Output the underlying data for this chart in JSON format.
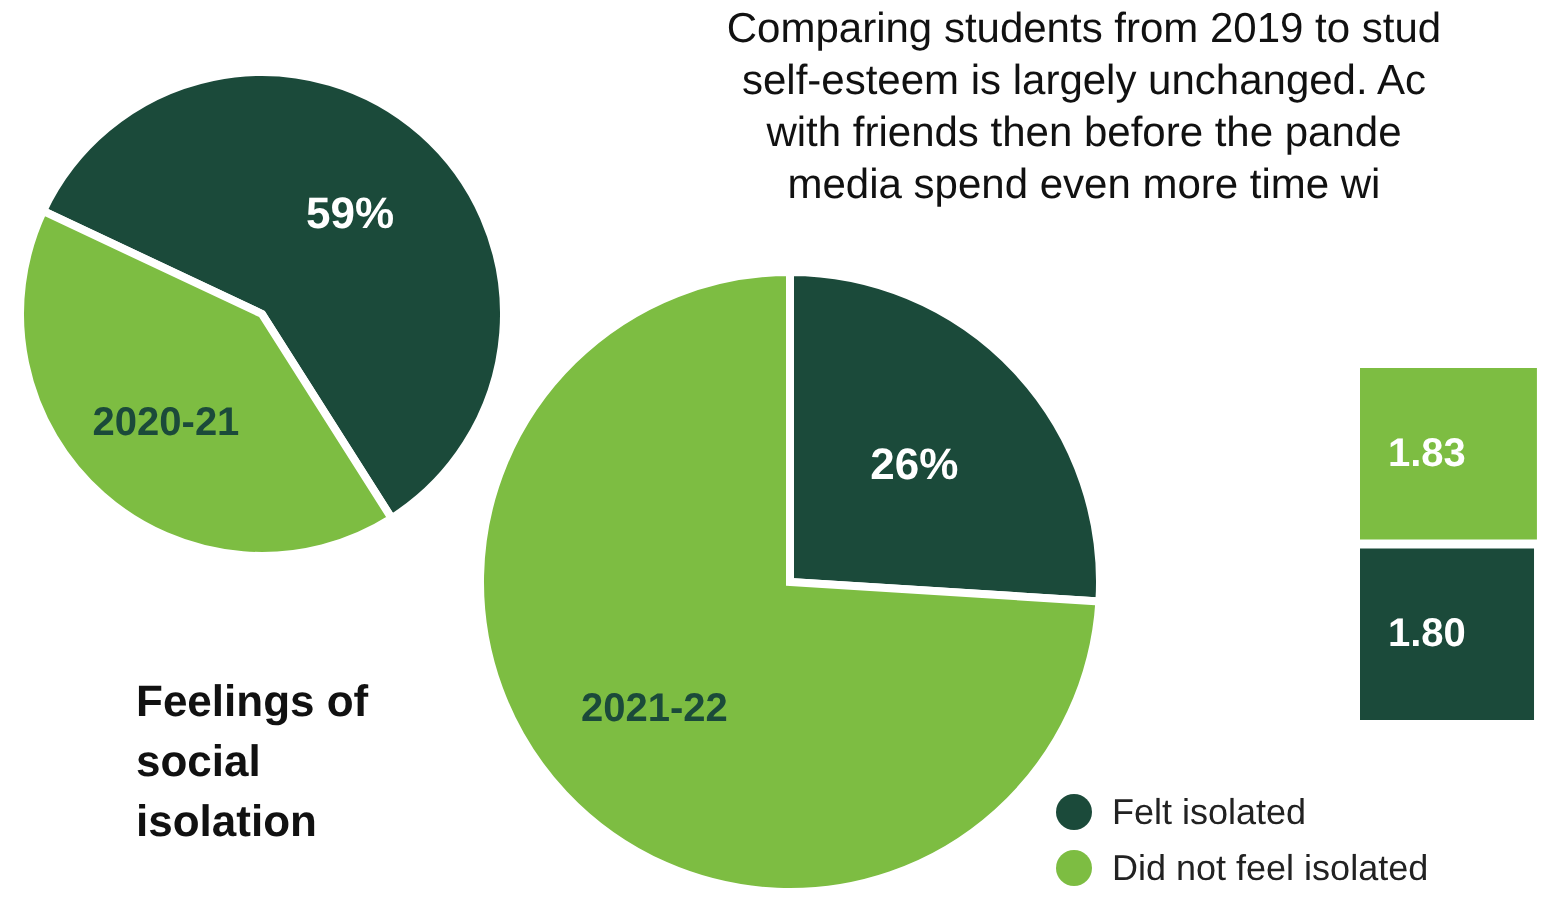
{
  "chart_data": [
    {
      "type": "pie",
      "title": "2020-21",
      "categories": [
        null,
        null
      ],
      "values": [
        59,
        41
      ],
      "colors": [
        "#1b4a3a",
        "#7dbd42"
      ],
      "value_labels": [
        "59%",
        null
      ],
      "annotations": [
        "Feelings of social isolation"
      ]
    },
    {
      "type": "pie",
      "title": "2021-22",
      "categories": [
        "Felt isolated",
        "Did not feel isolated"
      ],
      "values": [
        26,
        74
      ],
      "colors": [
        "#1b4a3a",
        "#7dbd42"
      ],
      "value_labels": [
        "26%",
        null
      ],
      "legend": "bottom right"
    },
    {
      "type": "bar",
      "orientation": "horizontal",
      "categories": [
        null,
        null
      ],
      "values": [
        1.83,
        1.8
      ],
      "colors": [
        "#7dbd42",
        "#1b4a3a"
      ],
      "value_labels": [
        "1.83",
        "1.80"
      ],
      "annotations": [
        "Comparing students from 2019 to stud",
        "self-esteem is largely unchanged. Ac",
        "with friends then before the pande",
        "media spend even more time wi"
      ]
    }
  ]
}
